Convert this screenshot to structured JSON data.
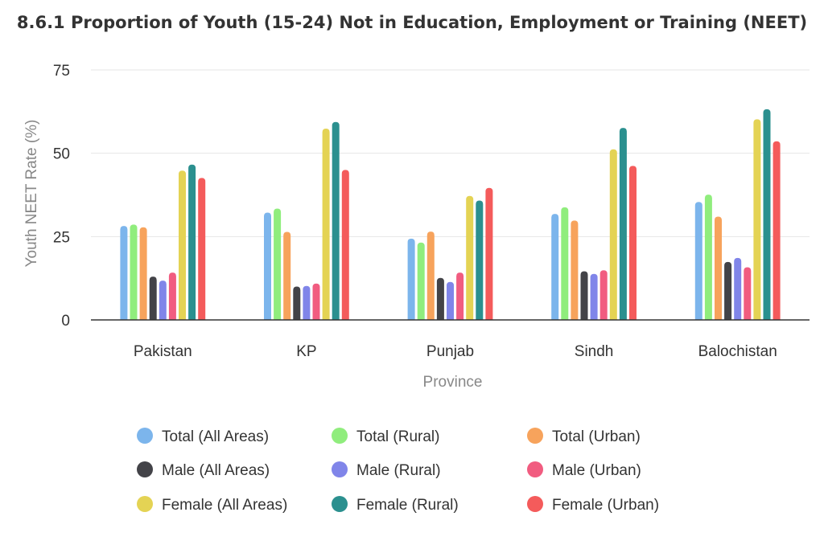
{
  "chart_data": {
    "type": "bar",
    "title": "8.6.1 Proportion of Youth (15-24) Not in Education, Employment or Training (NEET)",
    "xlabel": "Province",
    "ylabel": "Youth NEET Rate (%)",
    "ylim": [
      0,
      75
    ],
    "yticks": [
      0,
      25,
      50,
      75
    ],
    "grid": true,
    "legend_position": "bottom",
    "categories": [
      "Pakistan",
      "KP",
      "Punjab",
      "Sindh",
      "Balochistan"
    ],
    "series": [
      {
        "name": "Total (All Areas)",
        "color": "#7cb5ec",
        "values": [
          28.2,
          32.2,
          24.4,
          31.8,
          35.4
        ]
      },
      {
        "name": "Total (Rural)",
        "color": "#90ed7d",
        "values": [
          28.6,
          33.4,
          23.2,
          33.8,
          37.6
        ]
      },
      {
        "name": "Total (Urban)",
        "color": "#f7a35c",
        "values": [
          27.8,
          26.4,
          26.5,
          29.8,
          31.0
        ]
      },
      {
        "name": "Male (All Areas)",
        "color": "#434348",
        "values": [
          13.0,
          10.0,
          12.6,
          14.6,
          17.4
        ]
      },
      {
        "name": "Male (Rural)",
        "color": "#8085e9",
        "values": [
          11.8,
          10.2,
          11.4,
          13.8,
          18.6
        ]
      },
      {
        "name": "Male (Urban)",
        "color": "#f15c80",
        "values": [
          14.2,
          10.9,
          14.2,
          14.9,
          15.8
        ]
      },
      {
        "name": "Female (All Areas)",
        "color": "#e4d354",
        "values": [
          44.8,
          57.4,
          37.2,
          51.2,
          60.2
        ]
      },
      {
        "name": "Female (Rural)",
        "color": "#2b908f",
        "values": [
          46.6,
          59.4,
          35.8,
          57.6,
          63.2
        ]
      },
      {
        "name": "Female (Urban)",
        "color": "#f45b5b",
        "values": [
          42.6,
          45.0,
          39.6,
          46.2,
          53.6
        ]
      }
    ]
  }
}
